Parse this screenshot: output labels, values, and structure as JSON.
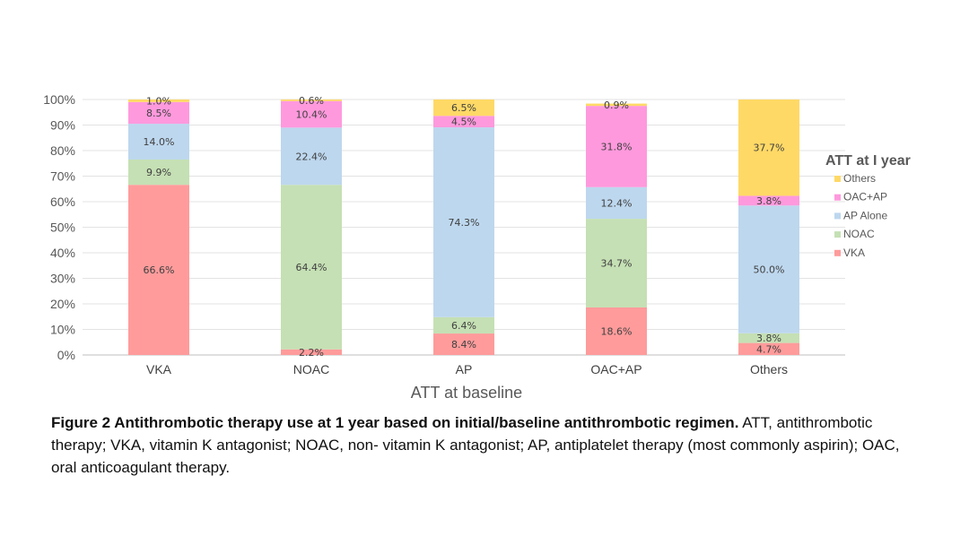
{
  "chart_data": {
    "type": "bar",
    "stacked": true,
    "categories": [
      "VKA",
      "NOAC",
      "AP",
      "OAC+AP",
      "Others"
    ],
    "series": [
      {
        "name": "VKA",
        "color": "#ff9b9b",
        "values": [
          66.6,
          2.2,
          8.4,
          18.6,
          4.7
        ],
        "labels": [
          "66.6%",
          "2.2%",
          "8.4%",
          "18.6%",
          "4.7%"
        ]
      },
      {
        "name": "NOAC",
        "color": "#c5e0b4",
        "values": [
          9.9,
          64.4,
          6.4,
          34.7,
          3.8
        ],
        "labels": [
          "9.9%",
          "64.4%",
          "6.4%",
          "34.7%",
          "3.8%"
        ]
      },
      {
        "name": "AP Alone",
        "color": "#bdd7ee",
        "values": [
          14.0,
          22.4,
          74.3,
          12.4,
          50.0
        ],
        "labels": [
          "14.0%",
          "22.4%",
          "74.3%",
          "12.4%",
          "50.0%"
        ]
      },
      {
        "name": "OAC+AP",
        "color": "#ff99dd",
        "values": [
          8.5,
          10.4,
          4.5,
          31.8,
          3.8
        ],
        "labels": [
          "8.5%",
          "10.4%",
          "4.5%",
          "31.8%",
          "3.8%"
        ]
      },
      {
        "name": "Others",
        "color": "#ffd966",
        "values": [
          1.0,
          0.6,
          6.5,
          0.9,
          37.7
        ],
        "labels": [
          "1.0%",
          "0.6%",
          "6.5%",
          "0.9%",
          "37.7%"
        ]
      }
    ],
    "yticks": [
      "0%",
      "10%",
      "20%",
      "30%",
      "40%",
      "50%",
      "60%",
      "70%",
      "80%",
      "90%",
      "100%"
    ],
    "ylim": [
      0,
      100
    ],
    "xlabel": "ATT at baseline",
    "ylabel": "",
    "grid": true,
    "legend": {
      "title": "ATT at I year",
      "placement": "right",
      "entries": [
        "Others",
        "OAC+AP",
        "AP Alone",
        "NOAC",
        "VKA"
      ]
    }
  },
  "caption": {
    "bold": "Figure 2 Antithrombotic therapy use at 1 year based on initial/baseline antithrombotic regimen.",
    "text": " ATT, antithrombotic therapy; VKA, vitamin K antagonist; NOAC, non- vitamin K antagonist; AP, antiplatelet therapy (most commonly aspirin); OAC, oral anticoagulant therapy."
  }
}
